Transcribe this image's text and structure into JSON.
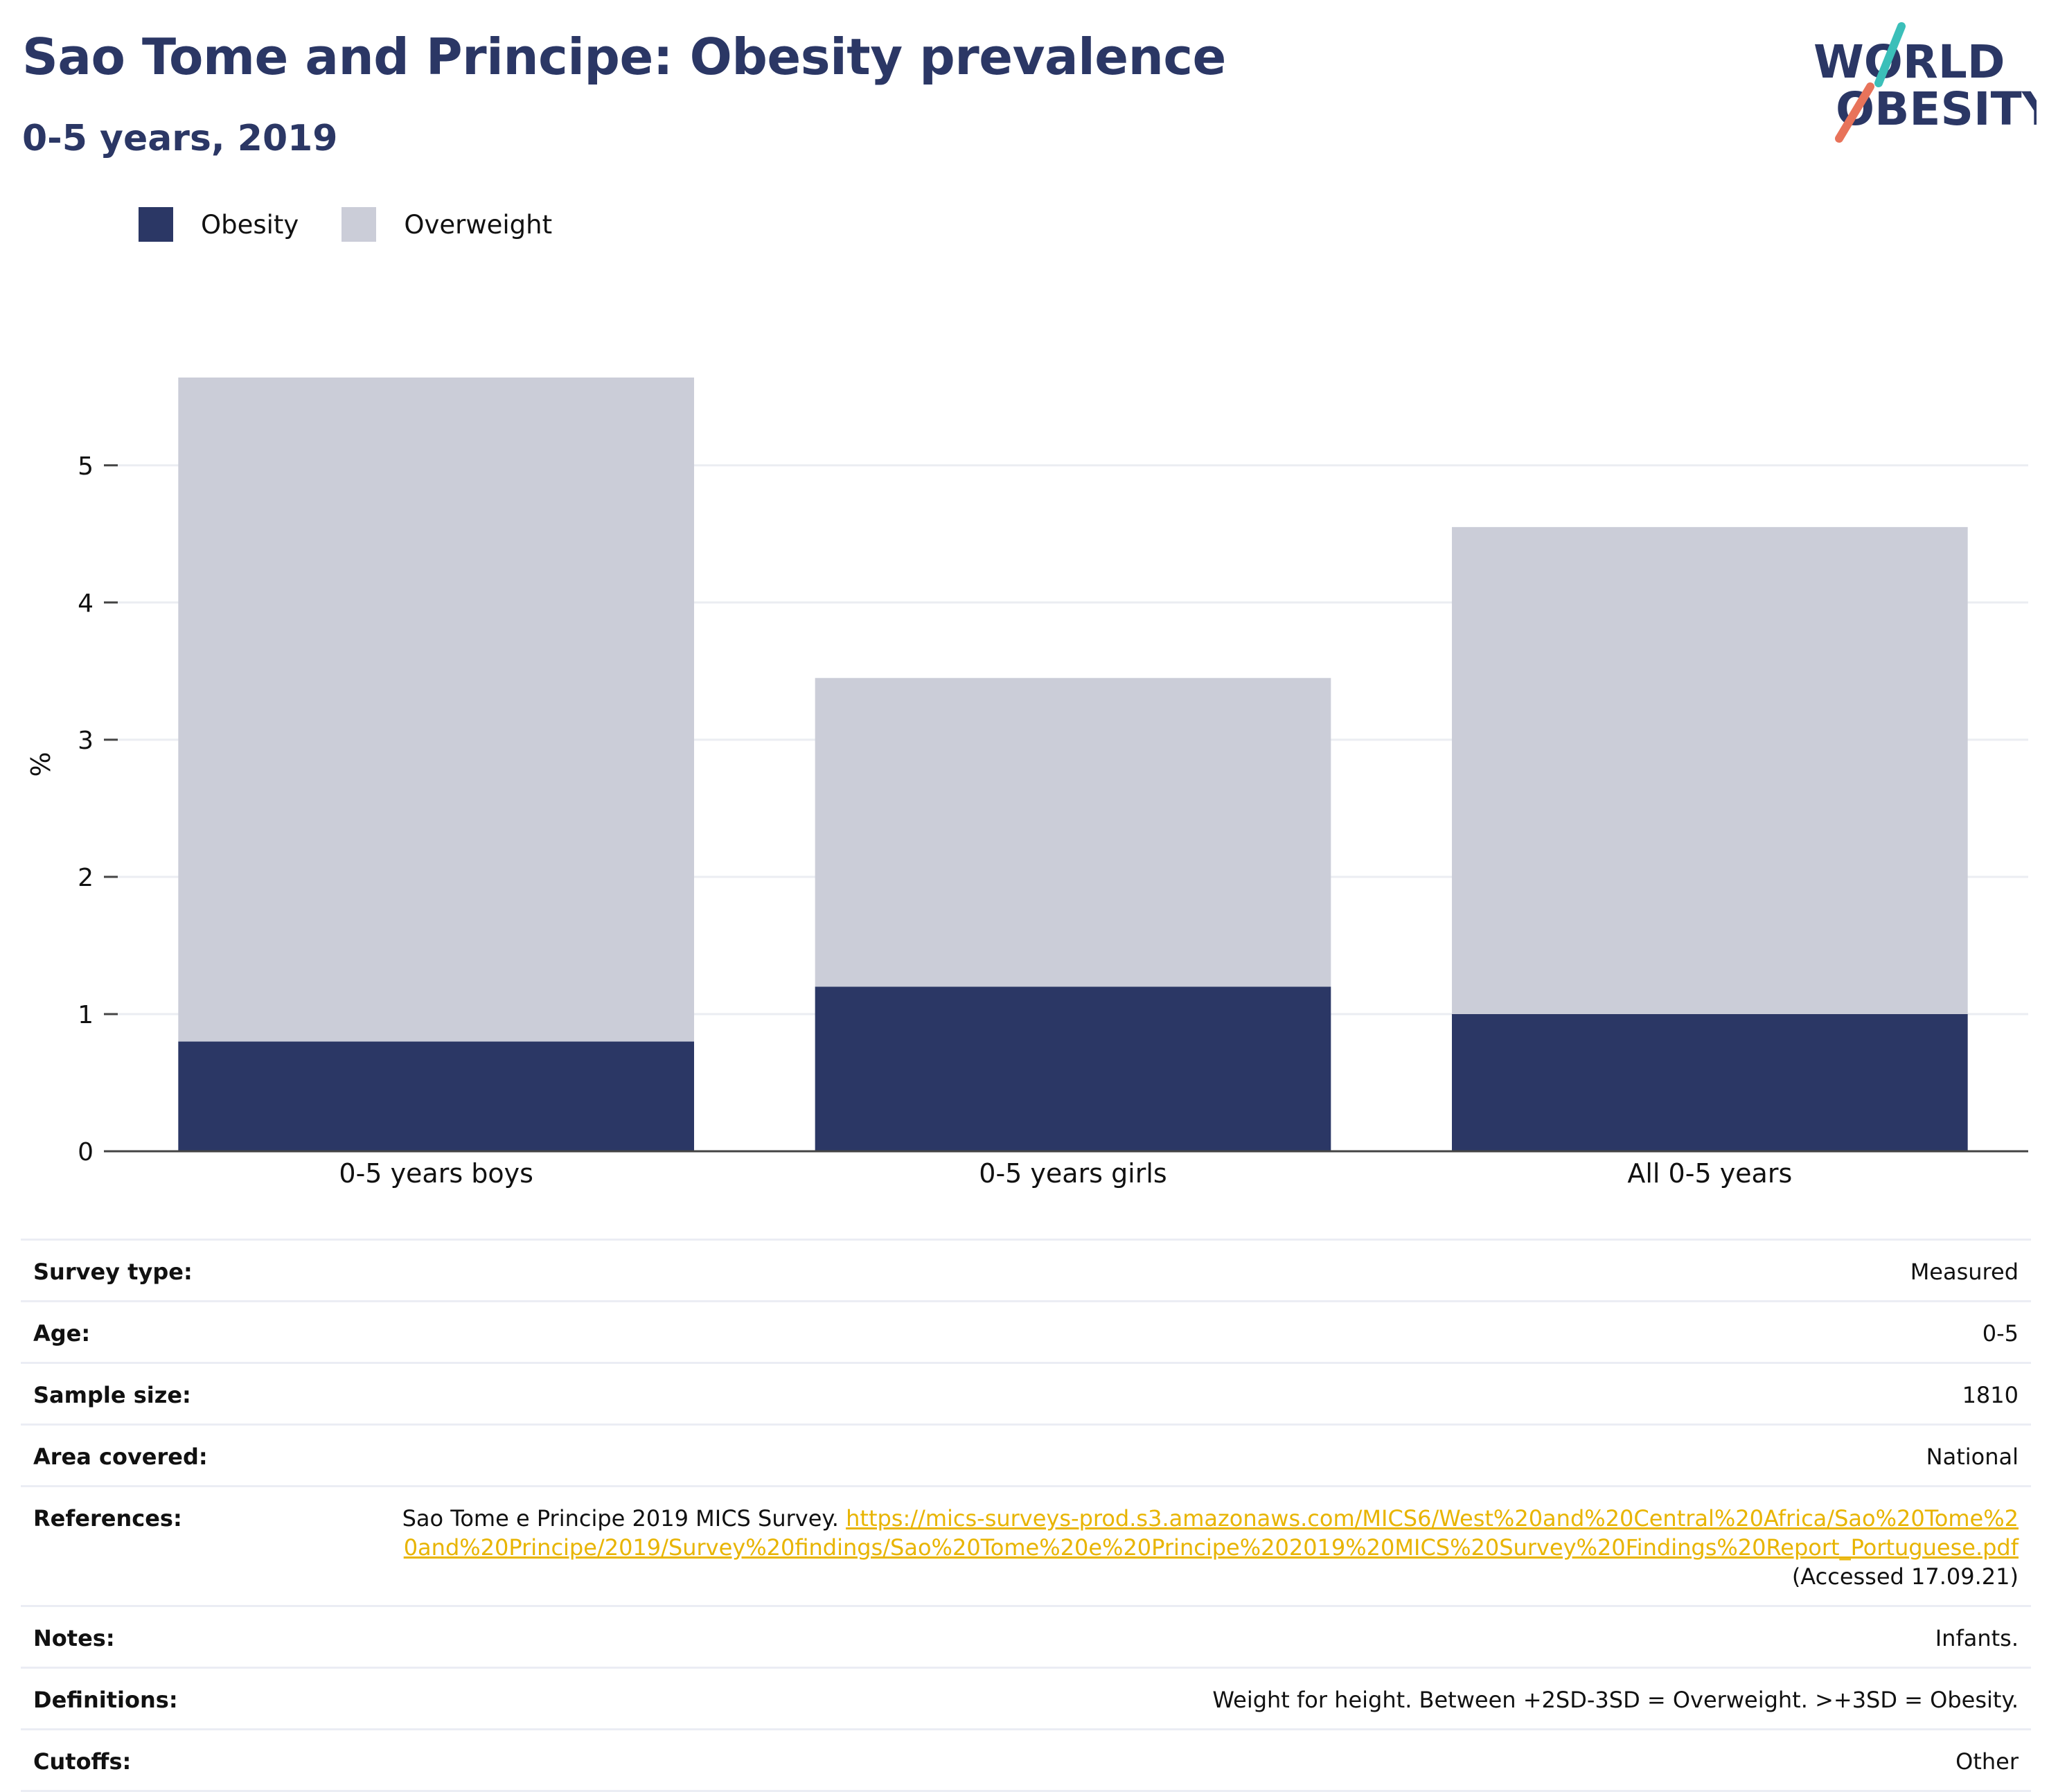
{
  "header": {
    "title": "Sao Tome and Principe: Obesity prevalence",
    "subtitle": "0-5 years, 2019"
  },
  "logo": {
    "line1": "WORLD",
    "line2": "OBESITY",
    "accent_teal": "#3bbfb9",
    "accent_coral": "#e8735a",
    "text_color": "#2b3765"
  },
  "legend": {
    "items": [
      {
        "label": "Obesity",
        "color": "#2b3765"
      },
      {
        "label": "Overweight",
        "color": "#cbcdd8"
      }
    ]
  },
  "chart_data": {
    "type": "bar",
    "stacked": true,
    "categories": [
      "0-5 years boys",
      "0-5 years girls",
      "All 0-5 years"
    ],
    "series": [
      {
        "name": "Obesity",
        "color": "#2b3765",
        "values": [
          0.8,
          1.2,
          1.0
        ]
      },
      {
        "name": "Overweight",
        "color": "#cbcdd8",
        "values": [
          4.84,
          2.25,
          3.55
        ]
      }
    ],
    "ylabel": "%",
    "xlabel": "",
    "ylim": [
      0,
      5.64
    ],
    "yticks": [
      0,
      1,
      2,
      3,
      4,
      5
    ],
    "grid": true,
    "legend_position": "top-left"
  },
  "meta": {
    "survey_type": {
      "label": "Survey type:",
      "value": "Measured"
    },
    "age": {
      "label": "Age:",
      "value": "0-5"
    },
    "sample_size": {
      "label": "Sample size:",
      "value": "1810"
    },
    "area_covered": {
      "label": "Area covered:",
      "value": "National"
    },
    "references": {
      "label": "References:",
      "prefix": "Sao Tome e Principe 2019 MICS Survey. ",
      "link": "https://mics-surveys-prod.s3.amazonaws.com/MICS6/West%20and%20Central%20Africa/Sao%20Tome%20and%20Principe/2019/Survey%20findings/Sao%20Tome%20e%20Principe%202019%20MICS%20Survey%20Findings%20Report_Portuguese.pdf",
      "suffix": " (Accessed 17.09.21)"
    },
    "notes": {
      "label": "Notes:",
      "value": "Infants."
    },
    "definitions": {
      "label": "Definitions:",
      "value": "Weight for height. Between +2SD-3SD = Overweight. >+3SD = Obesity."
    },
    "cutoffs": {
      "label": "Cutoffs:",
      "value": "Other"
    }
  }
}
